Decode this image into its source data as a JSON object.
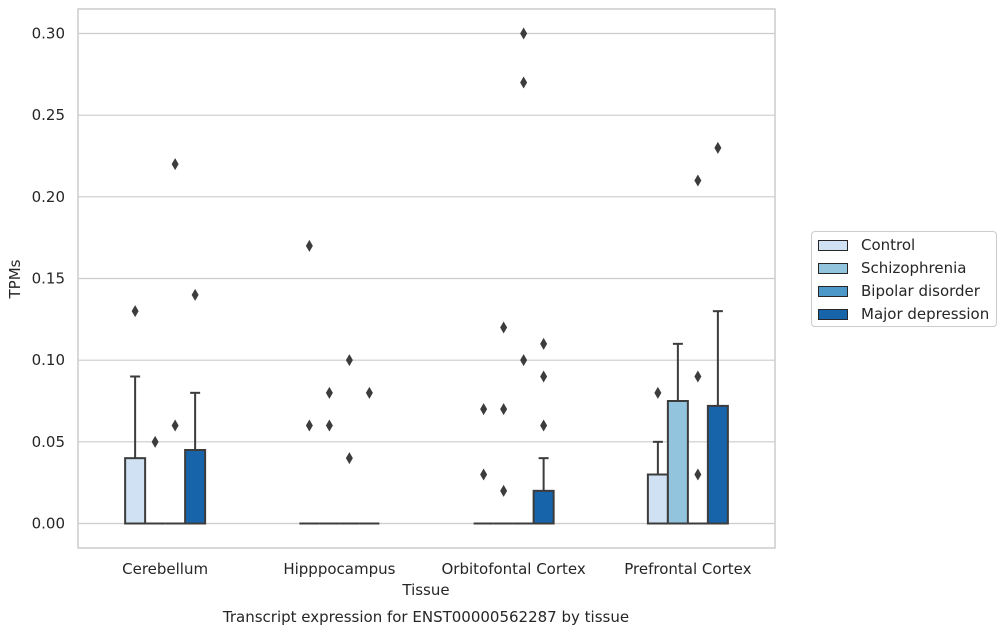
{
  "chart_data": {
    "type": "box",
    "ylabel": "TPMs",
    "xlabel": "Tissue",
    "caption": "Transcript expression for ENST00000562287 by tissue",
    "ylim": [
      -0.015,
      0.315
    ],
    "y_ticks": [
      "0.00",
      "0.05",
      "0.10",
      "0.15",
      "0.20",
      "0.25",
      "0.30"
    ],
    "grid": "horizontal",
    "legend_position": "right",
    "categories": [
      "Cerebellum",
      "Hipppocampus",
      "Orbitofontal Cortex",
      "Prefrontal Cortex"
    ],
    "series": [
      {
        "name": "Control",
        "color": "#cfe1f2"
      },
      {
        "name": "Schizophrenia",
        "color": "#93c4de"
      },
      {
        "name": "Bipolar disorder",
        "color": "#4b98c9"
      },
      {
        "name": "Major depression",
        "color": "#1764ab"
      }
    ],
    "boxes": [
      [
        {
          "q1": 0,
          "q3": 0.04,
          "median": 0,
          "whisker_low": 0,
          "whisker_high": 0.09,
          "outliers": [
            0.13
          ]
        },
        {
          "q1": 0,
          "q3": 0,
          "median": 0,
          "whisker_low": 0,
          "whisker_high": 0,
          "outliers": [
            0.05
          ]
        },
        {
          "q1": 0,
          "q3": 0,
          "median": 0,
          "whisker_low": 0,
          "whisker_high": 0,
          "outliers": [
            0.06,
            0.22
          ]
        },
        {
          "q1": 0,
          "q3": 0.045,
          "median": 0,
          "whisker_low": 0,
          "whisker_high": 0.08,
          "outliers": [
            0.14
          ]
        }
      ],
      [
        {
          "q1": 0,
          "q3": 0,
          "median": 0,
          "whisker_low": 0,
          "whisker_high": 0,
          "outliers": [
            0.06,
            0.17
          ]
        },
        {
          "q1": 0,
          "q3": 0,
          "median": 0,
          "whisker_low": 0,
          "whisker_high": 0,
          "outliers": [
            0.06,
            0.08
          ]
        },
        {
          "q1": 0,
          "q3": 0,
          "median": 0,
          "whisker_low": 0,
          "whisker_high": 0,
          "outliers": [
            0.04,
            0.1
          ]
        },
        {
          "q1": 0,
          "q3": 0,
          "median": 0,
          "whisker_low": 0,
          "whisker_high": 0,
          "outliers": [
            0.08
          ]
        }
      ],
      [
        {
          "q1": 0,
          "q3": 0,
          "median": 0,
          "whisker_low": 0,
          "whisker_high": 0,
          "outliers": [
            0.03,
            0.07
          ]
        },
        {
          "q1": 0,
          "q3": 0,
          "median": 0,
          "whisker_low": 0,
          "whisker_high": 0,
          "outliers": [
            0.02,
            0.07,
            0.12
          ]
        },
        {
          "q1": 0,
          "q3": 0,
          "median": 0,
          "whisker_low": 0,
          "whisker_high": 0,
          "outliers": [
            0.1,
            0.27,
            0.3
          ]
        },
        {
          "q1": 0,
          "q3": 0.02,
          "median": 0,
          "whisker_low": 0,
          "whisker_high": 0.04,
          "outliers": [
            0.06,
            0.09,
            0.11
          ]
        }
      ],
      [
        {
          "q1": 0,
          "q3": 0.03,
          "median": 0,
          "whisker_low": 0,
          "whisker_high": 0.05,
          "outliers": [
            0.08
          ]
        },
        {
          "q1": 0,
          "q3": 0.075,
          "median": 0,
          "whisker_low": 0,
          "whisker_high": 0.11,
          "outliers": []
        },
        {
          "q1": 0,
          "q3": 0,
          "median": 0,
          "whisker_low": 0,
          "whisker_high": 0,
          "outliers": [
            0.03,
            0.09,
            0.21
          ]
        },
        {
          "q1": 0,
          "q3": 0.072,
          "median": 0,
          "whisker_low": 0,
          "whisker_high": 0.13,
          "outliers": [
            0.23
          ]
        }
      ]
    ]
  }
}
